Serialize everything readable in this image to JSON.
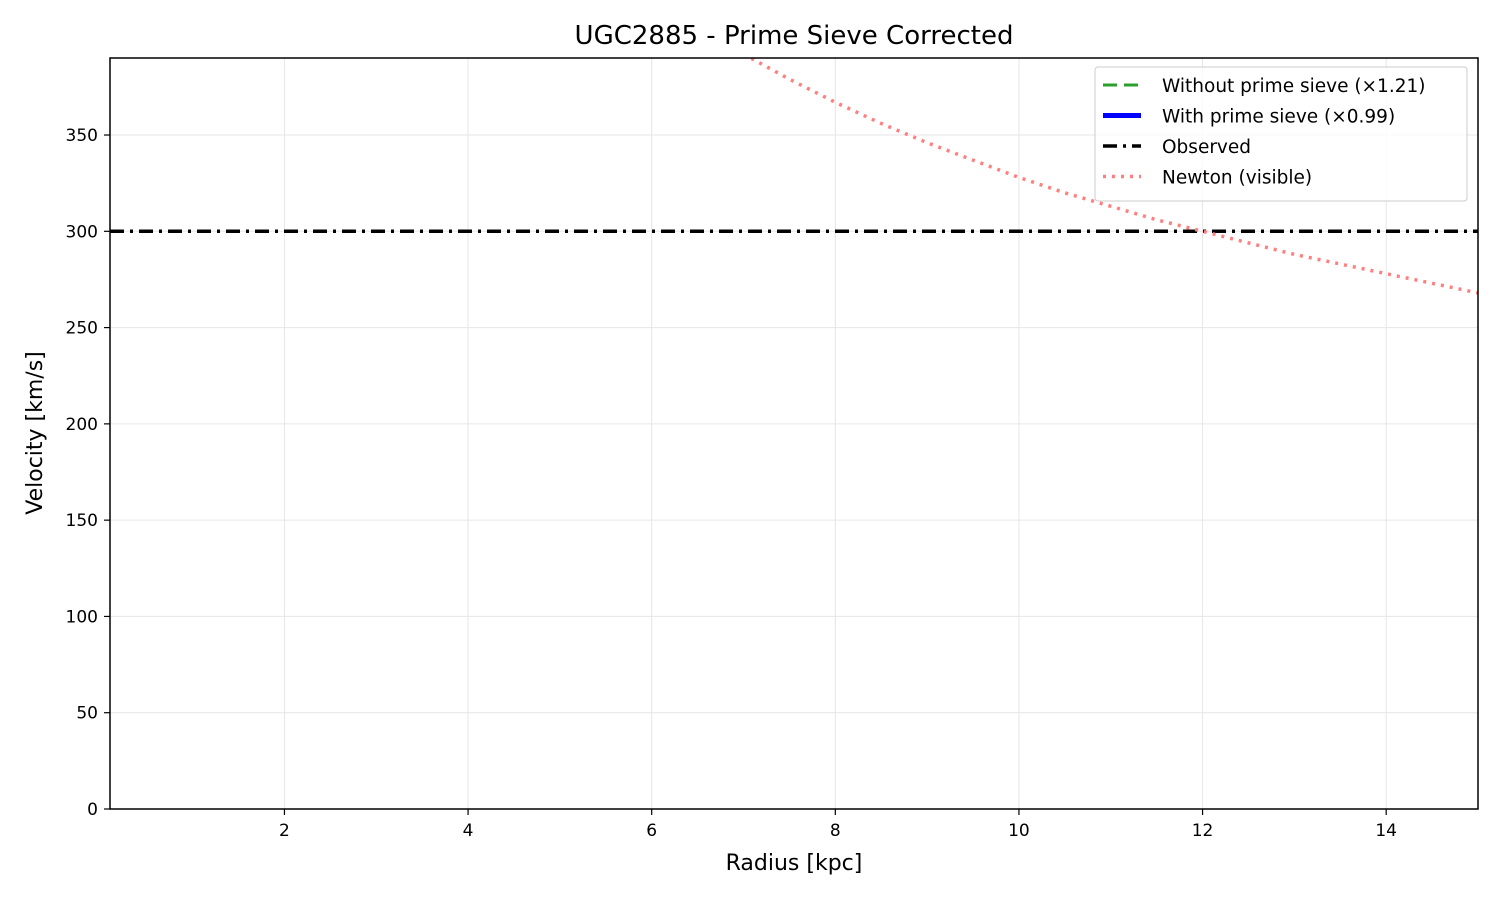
{
  "chart_data": {
    "type": "line",
    "title": "UGC2885 - Prime Sieve Corrected",
    "xlabel": "Radius [kpc]",
    "ylabel": "Velocity [km/s]",
    "xlim": [
      0.1,
      15
    ],
    "ylim": [
      0,
      390
    ],
    "xticks": [
      2,
      4,
      6,
      8,
      10,
      12,
      14
    ],
    "yticks": [
      0,
      50,
      100,
      150,
      200,
      250,
      300,
      350
    ],
    "grid": true,
    "legend_position": "top-right",
    "series": [
      {
        "name": "Without prime sieve (×1.21)",
        "color": "#2ca02c",
        "style": "dashed",
        "x": [],
        "y": []
      },
      {
        "name": "With prime sieve (×0.99)",
        "color": "#0000ff",
        "style": "solid",
        "x": [],
        "y": []
      },
      {
        "name": "Observed",
        "color": "#000000",
        "style": "dashdot",
        "x": [
          0.1,
          15
        ],
        "y": [
          300,
          300
        ]
      },
      {
        "name": "Newton (visible)",
        "color": "#ff7f7f",
        "style": "dotted",
        "x": [
          7,
          7.5,
          8,
          8.5,
          9,
          9.5,
          10,
          10.5,
          11,
          11.5,
          12,
          12.5,
          13,
          13.5,
          14,
          14.5,
          15
        ],
        "y": [
          392,
          379,
          367,
          356,
          346,
          337,
          328,
          320,
          313,
          306,
          300,
          294,
          288,
          283,
          278,
          273,
          268
        ]
      }
    ]
  }
}
